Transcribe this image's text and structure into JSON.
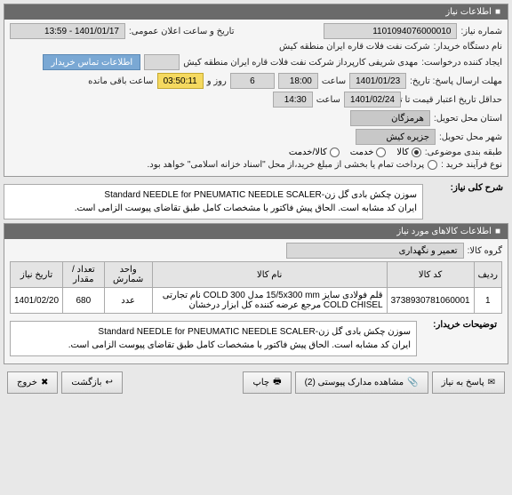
{
  "panel1": {
    "title": "اطلاعات نیاز",
    "need_no_label": "شماره نیاز:",
    "need_no": "1101094076000010",
    "announce_label": "تاریخ و ساعت اعلان عمومی:",
    "announce": "1401/01/17 - 13:59",
    "buyer_label": "نام دستگاه خریدار:",
    "buyer": "شرکت نفت فلات قاره ایران منطقه کیش",
    "requester_label": "ایجاد کننده درخواست:",
    "requester": "مهدی شریفی کارپرداز شرکت نفت فلات قاره ایران منطقه کیش",
    "contact_btn": "اطلاعات تماس خریدار",
    "deadline_label": "مهلت ارسال پاسخ:  تاریخ:",
    "deadline_date": "1401/01/23",
    "time_label": "ساعت",
    "deadline_time": "18:00",
    "days_left": "6",
    "days_word": "روز و",
    "timer": "03:50:11",
    "remain": "ساعت باقی مانده",
    "validity_label": "حداقل تاریخ اعتبار قیمت تا تاریخ:",
    "validity_date": "1401/02/24",
    "validity_time": "14:30",
    "province_label": "استان محل تحویل:",
    "province": "هرمزگان",
    "city_label": "شهر محل تحویل:",
    "city": "جزیره کیش",
    "category_label": "طبقه بندی موضوعی:",
    "cat_goods": "کالا",
    "cat_service": "خدمت",
    "cat_both": "کالا/خدمت",
    "process_label": "نوع فرآیند خرید :",
    "process_note": "پرداخت تمام یا بخشی از مبلغ خرید،از محل \"اسناد خزانه اسلامی\" خواهد بود."
  },
  "desc": {
    "label": "شرح کلی نیاز:",
    "text": "سوزن چکش بادی گل زن-Standard NEEDLE for PNEUMATIC NEEDLE SCALER\nایران کد مشابه است. الحاق پیش فاکتور با مشخصات کامل طبق تقاضای پیوست الزامی است."
  },
  "panel2": {
    "title": "اطلاعات کالاهای مورد نیاز",
    "group_label": "گروه کالا:",
    "group": "تعمیر و نگهداری"
  },
  "table": {
    "headers": [
      "ردیف",
      "کد کالا",
      "نام کالا",
      "واحد شمارش",
      "تعداد / مقدار",
      "تاریخ نیاز"
    ],
    "rows": [
      [
        "1",
        "3738930781060001",
        "قلم فولادی سایز 15/5x300 mm مدل COLD 300 نام تجارتی COLD CHISEL مرجع عرضه کننده کل ابزار درخشان",
        "عدد",
        "680",
        "1401/02/20"
      ]
    ]
  },
  "buyer_note": {
    "label": "توضیحات خریدار:",
    "text": "سوزن چکش بادی گل زن-Standard NEEDLE for PNEUMATIC NEEDLE SCALER\nایران کد مشابه است. الحاق پیش فاکتور با مشخصات کامل طبق تقاضای پیوست الزامی است."
  },
  "footer": {
    "reply": "پاسخ به نیاز",
    "attach": "مشاهده مدارک پیوستی (2)",
    "print": "چاپ",
    "back": "بازگشت",
    "exit": "خروج"
  }
}
